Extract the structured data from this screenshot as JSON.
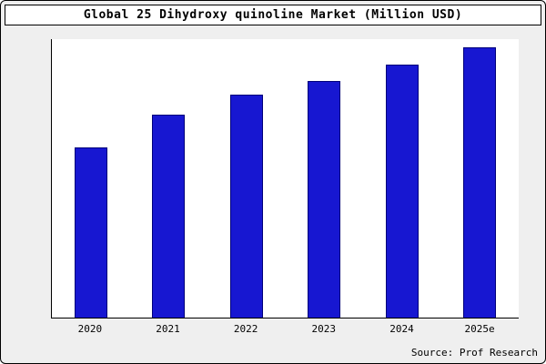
{
  "title": "Global 25 Dihydroxy quinoline Market (Million USD)",
  "source": "Source: Prof Research",
  "colors": {
    "bar_fill": "#1717d1",
    "bar_border": "#00007a",
    "frame_background": "#efefef",
    "plot_background": "#ffffff",
    "axis": "#000000"
  },
  "chart_data": {
    "type": "bar",
    "categories": [
      "2020",
      "2021",
      "2022",
      "2023",
      "2024",
      "2025e"
    ],
    "values": [
      61,
      73,
      80,
      85,
      91,
      97
    ],
    "title": "Global 25 Dihydroxy quinoline Market (Million USD)",
    "xlabel": "",
    "ylabel": "",
    "ylim": [
      0,
      100
    ],
    "grid": false,
    "legend": false,
    "note": "No y-axis tick labels shown; values are relative heights (percent of plot height)"
  }
}
